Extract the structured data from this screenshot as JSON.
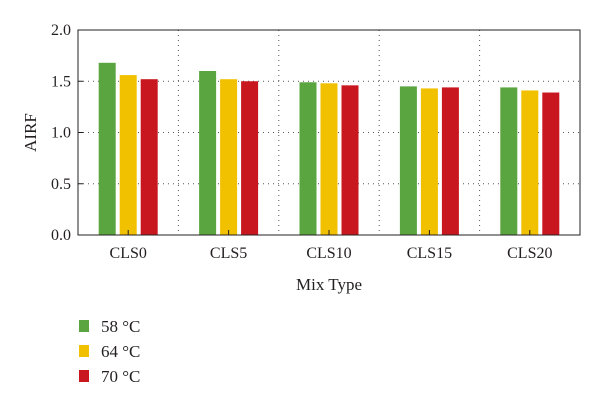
{
  "chart_data": {
    "type": "bar",
    "title": "",
    "xlabel": "Mix Type",
    "ylabel": "AIRF",
    "ylim": [
      0,
      2.0
    ],
    "yticks": [
      "0.0",
      "0.5",
      "1.0",
      "1.5",
      "2.0"
    ],
    "categories": [
      "CLS0",
      "CLS5",
      "CLS10",
      "CLS15",
      "CLS20"
    ],
    "grid": "dotted",
    "legend_position": "bottom-left",
    "series": [
      {
        "name": "58 °C",
        "color": "#5aa540",
        "values": [
          1.68,
          1.6,
          1.49,
          1.45,
          1.44
        ]
      },
      {
        "name": "64 °C",
        "color": "#f1c100",
        "values": [
          1.56,
          1.52,
          1.48,
          1.43,
          1.41
        ]
      },
      {
        "name": "70 °C",
        "color": "#c8171e",
        "values": [
          1.52,
          1.5,
          1.46,
          1.44,
          1.39
        ]
      }
    ]
  }
}
